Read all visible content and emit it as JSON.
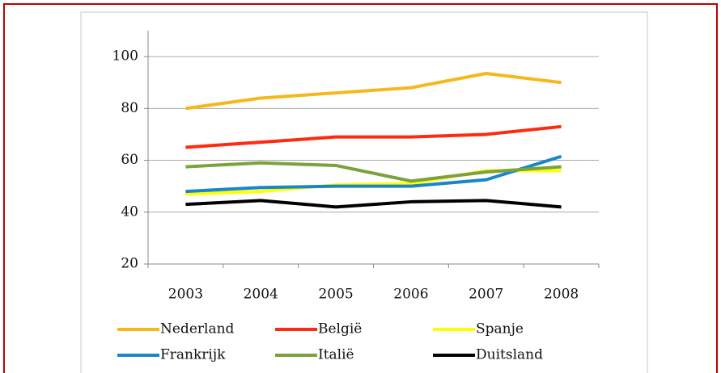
{
  "chart_data": {
    "type": "line",
    "categories": [
      "2003",
      "2004",
      "2005",
      "2006",
      "2007",
      "2008"
    ],
    "series": [
      {
        "name": "Nederland",
        "color": "#f5b81c",
        "values": [
          80,
          84,
          86,
          88,
          93.5,
          90
        ]
      },
      {
        "name": "België",
        "color": "#ff2a10",
        "values": [
          65,
          67,
          69,
          69,
          70,
          73
        ]
      },
      {
        "name": "Spanje",
        "color": "#ffff00",
        "values": [
          47,
          48,
          50.5,
          51,
          56,
          56
        ]
      },
      {
        "name": "Frankrijk",
        "color": "#1a86c8",
        "values": [
          48,
          49.5,
          50,
          50,
          52.5,
          61.5
        ]
      },
      {
        "name": "Italië",
        "color": "#7ba23c",
        "values": [
          57.5,
          59,
          58,
          52,
          55.5,
          57.5
        ]
      },
      {
        "name": "Duitsland",
        "color": "#000000",
        "values": [
          43,
          44.5,
          42,
          44,
          44.5,
          42
        ]
      }
    ],
    "ylim": [
      20,
      110
    ],
    "yticks": [
      20,
      40,
      60,
      80,
      100
    ],
    "grid": true,
    "legend": "bottom"
  }
}
